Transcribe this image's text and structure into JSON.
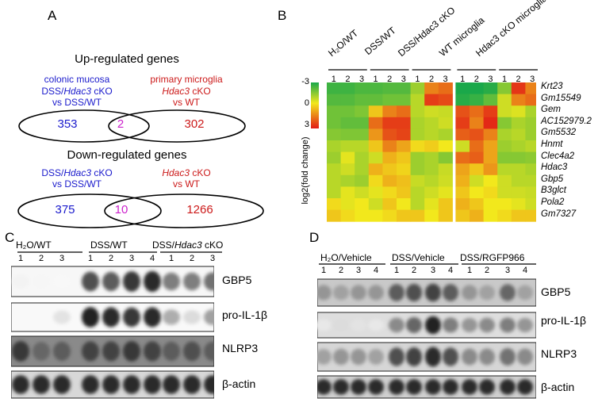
{
  "panels": {
    "a": "A",
    "b": "B",
    "c": "C",
    "d": "D"
  },
  "venn_up": {
    "title": "Up-regulated genes",
    "left_header": "colonic mucosa",
    "right_header": "primary microglia",
    "left_cmp_1": "DSS/",
    "left_cmp_gene": "Hdac3",
    "left_cmp_2": " cKO",
    "left_cmp_3": "vs DSS/WT",
    "right_cmp_gene": "Hdac3",
    "right_cmp_2": " cKO",
    "right_cmp_3": "vs WT",
    "left_only": "353",
    "overlap": "2",
    "right_only": "302"
  },
  "venn_down": {
    "title": "Down-regulated genes",
    "left_cmp_1": "DSS/",
    "left_cmp_gene": "Hdac3",
    "left_cmp_2": " cKO",
    "left_cmp_3": "vs DSS/WT",
    "right_cmp_gene": "Hdac3",
    "right_cmp_2": " cKO",
    "right_cmp_3": "vs WT",
    "left_only": "375",
    "overlap": "10",
    "right_only": "1266"
  },
  "heatmap": {
    "groups": [
      "H₂O/WT",
      "DSS/WT",
      "DSS/Hdac3 cKO",
      "WT microglia",
      "Hdac3 cKO microglia"
    ],
    "lanes": [
      "1",
      "2",
      "3"
    ],
    "genes": [
      "Krt23",
      "Gm15549",
      "Gem",
      "AC152979.2",
      "Gm5532",
      "Hnmt",
      "Clec4a2",
      "Hdac3",
      "Gbp5",
      "B3glct",
      "Pola2",
      "Gm7327"
    ],
    "scale_ticks": [
      "-3",
      "0",
      "3"
    ],
    "scale_label": "log2(fold change)",
    "colors": {
      "neg": "#1aa84a",
      "mid": "#f2e81c",
      "pos": "#e21b16"
    },
    "values": [
      [
        -2.5,
        -2.5,
        -2.3,
        -2.3,
        -2.2,
        -2.2,
        -1.2,
        1.5,
        1.8,
        -3,
        -3,
        -2.8,
        -1.5,
        2.6,
        1.5
      ],
      [
        -2.2,
        -2.2,
        -2.0,
        -2.0,
        -1.8,
        -1.8,
        -0.8,
        2.5,
        2.3,
        -2.8,
        -2.6,
        -2.0,
        -0.5,
        1.5,
        1.8
      ],
      [
        -1.8,
        -1.8,
        -1.6,
        0.5,
        1.5,
        1.8,
        -0.8,
        -0.5,
        -0.6,
        2.2,
        1.8,
        2.5,
        -0.5,
        -0.3,
        -1.0
      ],
      [
        -1.8,
        -2.0,
        -2.0,
        1.8,
        2.5,
        2.5,
        -1.0,
        -0.8,
        -0.5,
        2.5,
        1.5,
        2.8,
        -1.5,
        -1.0,
        -1.2
      ],
      [
        -1.5,
        -1.6,
        -1.6,
        1.2,
        2.2,
        2.4,
        -1.0,
        -0.8,
        -1.0,
        2.0,
        2.2,
        1.5,
        -1.0,
        -0.8,
        -1.2
      ],
      [
        -1.0,
        -0.8,
        -0.8,
        0.5,
        1.5,
        1.0,
        0.2,
        0.4,
        0.0,
        -0.5,
        1.8,
        1.0,
        -1.2,
        -1.0,
        -0.8
      ],
      [
        -1.2,
        -0.2,
        -1.0,
        -0.5,
        0.8,
        0.5,
        -1.2,
        -1.0,
        -1.5,
        1.8,
        2.0,
        1.0,
        -1.5,
        -1.5,
        -1.4
      ],
      [
        -0.8,
        -0.5,
        -1.0,
        0.8,
        0.5,
        0.3,
        -1.2,
        -1.0,
        -0.6,
        1.0,
        0.5,
        1.2,
        -0.8,
        -0.8,
        -1.0
      ],
      [
        -0.8,
        -1.0,
        -1.2,
        0.2,
        0.8,
        0.6,
        -0.6,
        -0.8,
        -0.5,
        0.8,
        -0.5,
        0.0,
        -0.5,
        -0.8,
        -0.8
      ],
      [
        -0.8,
        -0.2,
        -0.5,
        -0.2,
        0.2,
        0.5,
        -0.8,
        -0.5,
        -0.2,
        0.5,
        0.0,
        0.2,
        -0.5,
        -0.5,
        -0.6
      ],
      [
        0.2,
        -0.2,
        0.0,
        -0.5,
        0.5,
        0.0,
        -0.8,
        -0.2,
        0.5,
        0.8,
        0.5,
        0.0,
        0.0,
        -0.2,
        -0.5
      ],
      [
        0.5,
        0.2,
        0.0,
        0.0,
        0.2,
        0.5,
        0.5,
        0.0,
        0.5,
        0.5,
        0.8,
        0.0,
        0.2,
        0.5,
        0.5
      ]
    ]
  },
  "blot_c": {
    "groups": [
      {
        "label": "H₂O/WT",
        "lanes": [
          "1",
          "2",
          "3"
        ]
      },
      {
        "label": "DSS/WT",
        "lanes": [
          "1",
          "2",
          "3",
          "4"
        ]
      },
      {
        "label_1": "DSS/",
        "label_gene": "Hdac3",
        "label_2": " cKO",
        "lanes": [
          "1",
          "2",
          "3"
        ]
      }
    ],
    "labels": [
      "GBP5",
      "pro-IL-1β",
      "NLRP3",
      "β-actin"
    ]
  },
  "blot_d": {
    "groups": [
      {
        "label": "H₂O/Vehicle",
        "lanes": [
          "1",
          "2",
          "3",
          "4"
        ]
      },
      {
        "label": "DSS/Vehicle",
        "lanes": [
          "1",
          "2",
          "3",
          "4"
        ]
      },
      {
        "label": "DSS/RGFP966",
        "lanes": [
          "1",
          "2",
          "3",
          "4"
        ]
      }
    ],
    "labels": [
      "GBP5",
      "pro-IL-1β",
      "NLRP3",
      "β-actin"
    ]
  }
}
